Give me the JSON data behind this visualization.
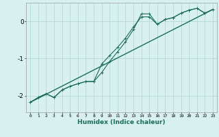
{
  "xlabel": "Humidex (Indice chaleur)",
  "bg_color": "#d8f0f0",
  "grid_color": "#b8dcdc",
  "line_color": "#1a6b5a",
  "xlim": [
    -0.5,
    23.5
  ],
  "ylim": [
    -2.45,
    0.5
  ],
  "yticks": [
    0,
    -1,
    -2
  ],
  "xtick_labels": [
    "0",
    "1",
    "2",
    "3",
    "4",
    "5",
    "6",
    "7",
    "8",
    "9",
    "10",
    "11",
    "12",
    "13",
    "14",
    "15",
    "16",
    "17",
    "18",
    "19",
    "20",
    "21",
    "22",
    "23"
  ],
  "line1_x": [
    0,
    1,
    2,
    3,
    4,
    5,
    6,
    7,
    8,
    9,
    10,
    11,
    12,
    13,
    14,
    15,
    16,
    17,
    18,
    19,
    20,
    21,
    22,
    23
  ],
  "line1_y": [
    -2.18,
    -2.05,
    -1.95,
    -2.05,
    -1.85,
    -1.75,
    -1.68,
    -1.62,
    -1.62,
    -1.38,
    -1.08,
    -0.82,
    -0.55,
    -0.22,
    0.2,
    0.2,
    -0.08,
    0.05,
    0.1,
    0.22,
    0.3,
    0.35,
    0.22,
    0.32
  ],
  "line2_x": [
    0,
    1,
    2,
    3,
    4,
    5,
    6,
    7,
    8,
    9,
    10,
    11,
    12,
    13,
    14,
    15,
    16,
    17,
    18,
    19,
    20,
    21,
    22,
    23
  ],
  "line2_y": [
    -2.18,
    -2.05,
    -1.95,
    -2.05,
    -1.85,
    -1.75,
    -1.68,
    -1.62,
    -1.62,
    -1.15,
    -0.92,
    -0.7,
    -0.45,
    -0.15,
    0.12,
    0.12,
    -0.08,
    0.05,
    0.1,
    0.22,
    0.3,
    0.35,
    0.22,
    0.32
  ],
  "line3_x": [
    0,
    23
  ],
  "line3_y": [
    -2.18,
    0.32
  ]
}
